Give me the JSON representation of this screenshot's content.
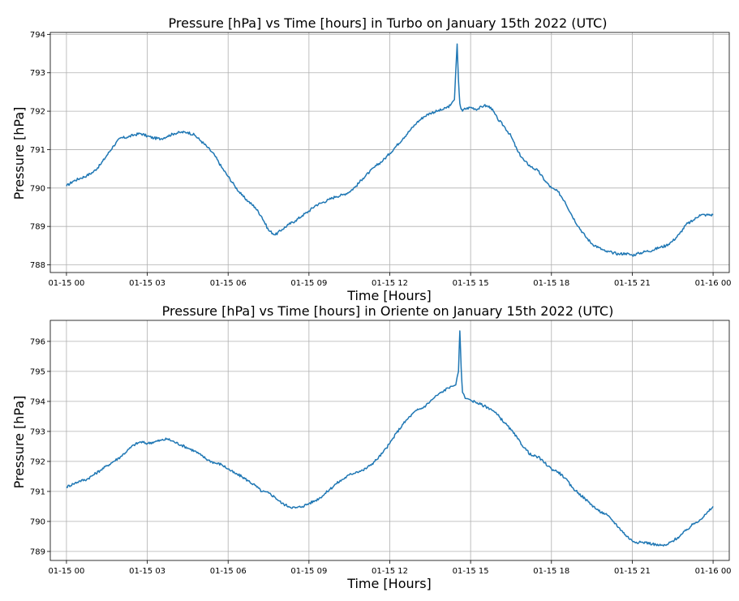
{
  "chart_data": [
    {
      "type": "line",
      "title": "Pressure [hPa] vs Time [hours] in Turbo on January 15th 2022 (UTC)",
      "xlabel": "Time [Hours]",
      "ylabel": "Pressure [hPa]",
      "xlim": [
        -0.6,
        24.6
      ],
      "ylim": [
        787.8,
        794.05
      ],
      "grid": true,
      "x_ticks": [
        0,
        3,
        6,
        9,
        12,
        15,
        18,
        21,
        24
      ],
      "x_tick_labels": [
        "01-15 00",
        "01-15 03",
        "01-15 06",
        "01-15 09",
        "01-15 12",
        "01-15 15",
        "01-15 18",
        "01-15 21",
        "01-16 00"
      ],
      "y_ticks": [
        788,
        789,
        790,
        791,
        792,
        793,
        794
      ],
      "y_tick_labels": [
        "788",
        "789",
        "790",
        "791",
        "792",
        "793",
        "794"
      ],
      "color": "#1f77b4",
      "series": [
        {
          "x": [
            0,
            0.25,
            0.5,
            0.75,
            1.0,
            1.25,
            1.5,
            1.75,
            2.0,
            2.25,
            2.5,
            2.75,
            3.0,
            3.25,
            3.5,
            3.75,
            4.0,
            4.25,
            4.5,
            4.75,
            5.0,
            5.25,
            5.5,
            5.75,
            6.0,
            6.25,
            6.5,
            6.75,
            7.0,
            7.25,
            7.5,
            7.75,
            8.0,
            8.25,
            8.5,
            8.75,
            9.0,
            9.25,
            9.5,
            9.75,
            10.0,
            10.25,
            10.5,
            10.75,
            11.0,
            11.25,
            11.5,
            11.75,
            12.0,
            12.25,
            12.5,
            12.75,
            13.0,
            13.25,
            13.5,
            13.75,
            14.0,
            14.25,
            14.4,
            14.5,
            14.55,
            14.6,
            14.65,
            14.7,
            14.75,
            15.0,
            15.25,
            15.5,
            15.75,
            16.0,
            16.25,
            16.5,
            16.75,
            17.0,
            17.25,
            17.5,
            17.75,
            18.0,
            18.25,
            18.5,
            18.75,
            19.0,
            19.25,
            19.5,
            19.75,
            20.0,
            20.25,
            20.5,
            20.75,
            21.0,
            21.25,
            21.5,
            21.75,
            22.0,
            22.25,
            22.5,
            22.75,
            23.0,
            23.25,
            23.5,
            23.75,
            24.0
          ],
          "y": [
            790.05,
            790.18,
            790.25,
            790.32,
            790.42,
            790.6,
            790.85,
            791.1,
            791.3,
            791.32,
            791.38,
            791.42,
            791.35,
            791.3,
            791.28,
            791.35,
            791.42,
            791.45,
            791.45,
            791.38,
            791.22,
            791.05,
            790.85,
            790.55,
            790.3,
            790.05,
            789.82,
            789.65,
            789.5,
            789.25,
            788.9,
            788.78,
            788.92,
            789.05,
            789.15,
            789.28,
            789.4,
            789.55,
            789.62,
            789.7,
            789.78,
            789.82,
            789.9,
            790.05,
            790.25,
            790.42,
            790.58,
            790.72,
            790.9,
            791.1,
            791.3,
            791.5,
            791.7,
            791.85,
            791.95,
            792.0,
            792.05,
            792.15,
            792.3,
            793.75,
            792.8,
            792.2,
            792.05,
            792.0,
            792.05,
            792.1,
            792.05,
            792.15,
            792.1,
            791.8,
            791.6,
            791.35,
            790.95,
            790.7,
            790.55,
            790.45,
            790.2,
            790.0,
            789.9,
            789.65,
            789.3,
            789.0,
            788.75,
            788.55,
            788.45,
            788.35,
            788.32,
            788.28,
            788.3,
            788.25,
            788.3,
            788.35,
            788.38,
            788.45,
            788.5,
            788.62,
            788.8,
            789.05,
            789.15,
            789.3,
            789.3,
            789.3
          ]
        }
      ]
    },
    {
      "type": "line",
      "title": "Pressure [hPa] vs Time [hours] in Oriente on January 15th 2022 (UTC)",
      "xlabel": "Time [Hours]",
      "ylabel": "Pressure [hPa]",
      "xlim": [
        -0.6,
        24.6
      ],
      "ylim": [
        788.7,
        796.7
      ],
      "grid": true,
      "x_ticks": [
        0,
        3,
        6,
        9,
        12,
        15,
        18,
        21,
        24
      ],
      "x_tick_labels": [
        "01-15 00",
        "01-15 03",
        "01-15 06",
        "01-15 09",
        "01-15 12",
        "01-15 15",
        "01-15 18",
        "01-15 21",
        "01-16 00"
      ],
      "y_ticks": [
        789,
        790,
        791,
        792,
        793,
        794,
        795,
        796
      ],
      "y_tick_labels": [
        "789",
        "790",
        "791",
        "792",
        "793",
        "794",
        "795",
        "796"
      ],
      "color": "#1f77b4",
      "series": [
        {
          "x": [
            0,
            0.25,
            0.5,
            0.75,
            1.0,
            1.25,
            1.5,
            1.75,
            2.0,
            2.25,
            2.5,
            2.75,
            3.0,
            3.25,
            3.5,
            3.75,
            4.0,
            4.25,
            4.5,
            4.75,
            5.0,
            5.25,
            5.5,
            5.75,
            6.0,
            6.25,
            6.5,
            6.75,
            7.0,
            7.25,
            7.5,
            7.75,
            8.0,
            8.25,
            8.5,
            8.75,
            9.0,
            9.25,
            9.5,
            9.75,
            10.0,
            10.25,
            10.5,
            10.75,
            11.0,
            11.25,
            11.5,
            11.75,
            12.0,
            12.25,
            12.5,
            12.75,
            13.0,
            13.25,
            13.5,
            13.75,
            14.0,
            14.25,
            14.45,
            14.55,
            14.6,
            14.65,
            14.7,
            14.8,
            15.0,
            15.25,
            15.5,
            15.75,
            16.0,
            16.25,
            16.5,
            16.75,
            17.0,
            17.25,
            17.5,
            17.75,
            18.0,
            18.25,
            18.5,
            18.75,
            19.0,
            19.25,
            19.5,
            19.75,
            20.0,
            20.25,
            20.5,
            20.75,
            21.0,
            21.25,
            21.5,
            21.75,
            22.0,
            22.25,
            22.5,
            22.75,
            23.0,
            23.25,
            23.5,
            23.75,
            24.0
          ],
          "y": [
            791.15,
            791.25,
            791.35,
            791.4,
            791.55,
            791.7,
            791.85,
            792.0,
            792.15,
            792.35,
            792.55,
            792.65,
            792.6,
            792.65,
            792.7,
            792.75,
            792.65,
            792.55,
            792.45,
            792.35,
            792.2,
            792.05,
            791.95,
            791.9,
            791.75,
            791.6,
            791.5,
            791.35,
            791.2,
            791.0,
            790.95,
            790.8,
            790.6,
            790.5,
            790.45,
            790.5,
            790.6,
            790.7,
            790.85,
            791.05,
            791.25,
            791.4,
            791.55,
            791.65,
            791.7,
            791.85,
            792.05,
            792.3,
            792.6,
            792.95,
            793.25,
            793.5,
            793.7,
            793.8,
            794.0,
            794.2,
            794.35,
            794.5,
            794.55,
            795.0,
            796.35,
            795.1,
            794.3,
            794.1,
            794.05,
            793.95,
            793.85,
            793.75,
            793.55,
            793.3,
            793.05,
            792.75,
            792.45,
            792.2,
            792.15,
            791.95,
            791.75,
            791.65,
            791.45,
            791.15,
            790.95,
            790.75,
            790.55,
            790.35,
            790.25,
            790.05,
            789.8,
            789.55,
            789.35,
            789.3,
            789.3,
            789.25,
            789.2,
            789.2,
            789.35,
            789.5,
            789.7,
            789.9,
            790.05,
            790.25,
            790.5
          ]
        }
      ]
    }
  ]
}
